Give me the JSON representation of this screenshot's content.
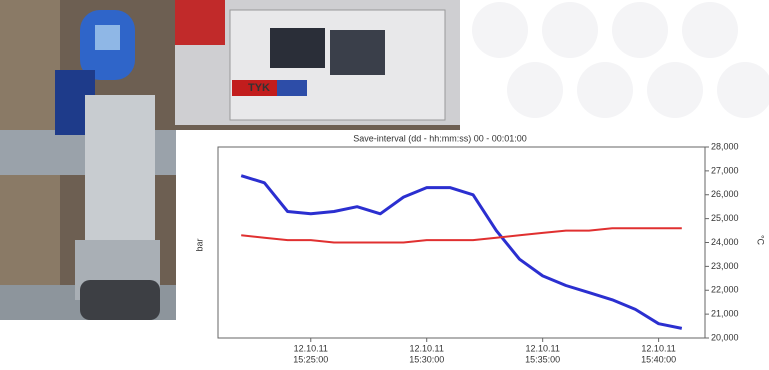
{
  "photo": {
    "label": "TYK"
  },
  "chart_data": {
    "type": "line",
    "title": "Save-interval  (dd - hh:mm:ss)       00 - 00:01:00",
    "ylabel": "bar",
    "ylabel_right": "°C",
    "x": [
      "15:22:00",
      "15:23:00",
      "15:24:00",
      "15:25:00",
      "15:26:00",
      "15:27:00",
      "15:28:00",
      "15:29:00",
      "15:30:00",
      "15:31:00",
      "15:32:00",
      "15:33:00",
      "15:34:00",
      "15:35:00",
      "15:36:00",
      "15:37:00",
      "15:38:00",
      "15:39:00",
      "15:40:00",
      "15:41:00"
    ],
    "xlim": [
      "15:21:00",
      "15:42:00"
    ],
    "xticks": [
      "15:25:00",
      "15:30:00",
      "15:35:00",
      "15:40:00"
    ],
    "xtick_dates": [
      "12.10.11",
      "12.10.11",
      "12.10.11",
      "12.10.11"
    ],
    "ylim": [
      20000,
      28000
    ],
    "yticks": [
      {
        "value": 20000,
        "label": "20,000"
      },
      {
        "value": 21000,
        "label": "21,000"
      },
      {
        "value": 22000,
        "label": "22,000"
      },
      {
        "value": 23000,
        "label": "23,000"
      },
      {
        "value": 24000,
        "label": "24,000"
      },
      {
        "value": 25000,
        "label": "25,000"
      },
      {
        "value": 26000,
        "label": "26,000"
      },
      {
        "value": 27000,
        "label": "27,000"
      },
      {
        "value": 28000,
        "label": "28,000"
      }
    ],
    "series": [
      {
        "color": "#2b2fd0",
        "values": [
          26800,
          26500,
          25300,
          25200,
          25300,
          25500,
          25200,
          25900,
          26300,
          26300,
          26000,
          24500,
          23300,
          22600,
          22200,
          21900,
          21600,
          21200,
          20600,
          20400
        ]
      },
      {
        "color": "#e03030",
        "values": [
          24300,
          24200,
          24100,
          24100,
          24000,
          24000,
          24000,
          24000,
          24100,
          24100,
          24100,
          24200,
          24300,
          24400,
          24500,
          24500,
          24600,
          24600,
          24600,
          24600
        ]
      }
    ]
  }
}
